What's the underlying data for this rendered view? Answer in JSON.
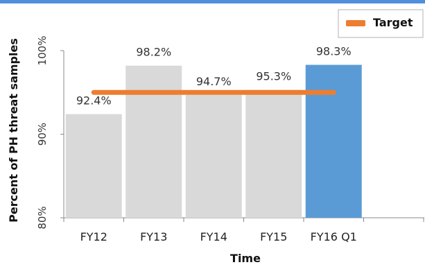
{
  "chart_data": {
    "type": "bar",
    "xlabel": "Time",
    "ylabel": "Percent of PH threat samples",
    "categories": [
      "FY12",
      "FY13",
      "FY14",
      "FY15",
      "FY16 Q1"
    ],
    "values": [
      92.4,
      98.2,
      94.7,
      95.3,
      98.3
    ],
    "data_labels": [
      "92.4%",
      "98.2%",
      "94.7%",
      "95.3%",
      "98.3%"
    ],
    "highlighted_category": "FY16 Q1",
    "y_ticks": [
      80,
      90,
      100
    ],
    "y_tick_labels": [
      "80%",
      "90%",
      "100%"
    ],
    "ylim": [
      80,
      100
    ],
    "target": {
      "name": "Target",
      "value": 95
    },
    "legend_position": "top-right",
    "grid": false,
    "colors": {
      "bar": "#d9d9d9",
      "highlight_bar": "#5b9bd5",
      "target_line": "#ed7d31",
      "top_rule": "#4f8fdc",
      "axis": "#888888"
    }
  }
}
